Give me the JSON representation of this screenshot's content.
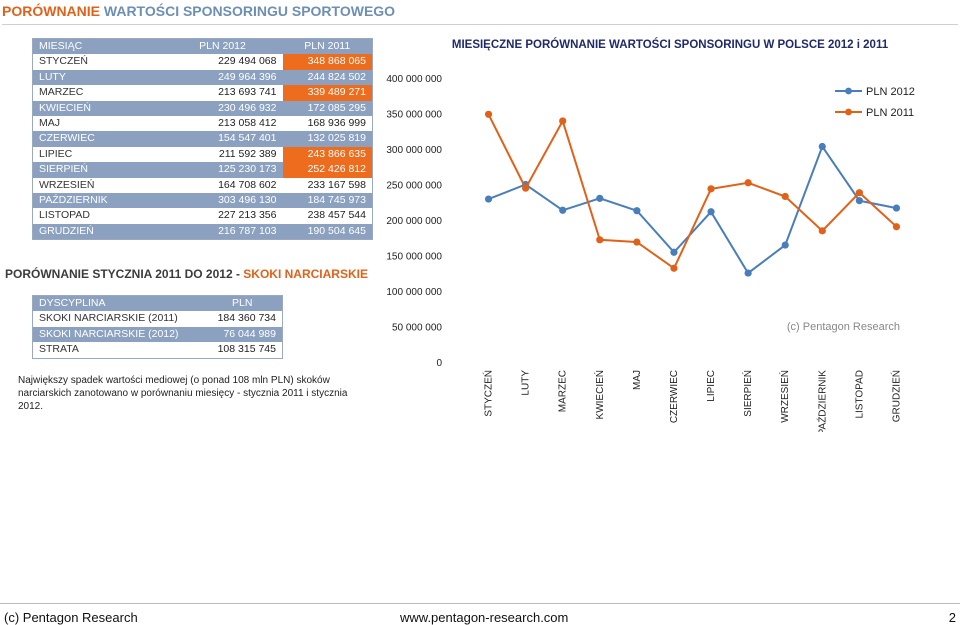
{
  "page": {
    "title_prefix": "PORÓWNANIE",
    "title_rest": " WARTOŚCI SPONSORINGU SPORTOWEGO"
  },
  "monthly_table": {
    "headers": [
      "MIESIĄC",
      "PLN 2012",
      "PLN 2011"
    ],
    "rows": [
      {
        "month": "STYCZEŃ",
        "v2012": "229 494 068",
        "v2011": "348 868 065",
        "hl": true
      },
      {
        "month": "LUTY",
        "v2012": "249 964 396",
        "v2011": "244 824 502",
        "hl": false
      },
      {
        "month": "MARZEC",
        "v2012": "213 693 741",
        "v2011": "339 489 271",
        "hl": true
      },
      {
        "month": "KWIECIEŃ",
        "v2012": "230 496 932",
        "v2011": "172 085 295",
        "hl": false
      },
      {
        "month": "MAJ",
        "v2012": "213 058 412",
        "v2011": "168 936 999",
        "hl": false
      },
      {
        "month": "CZERWIEC",
        "v2012": "154 547 401",
        "v2011": "132 025 819",
        "hl": false
      },
      {
        "month": "LIPIEC",
        "v2012": "211 592 389",
        "v2011": "243 866 635",
        "hl": true
      },
      {
        "month": "SIERPIEŃ",
        "v2012": "125 230 173",
        "v2011": "252 426 812",
        "hl": true
      },
      {
        "month": "WRZESIEŃ",
        "v2012": "164 708 602",
        "v2011": "233 167 598",
        "hl": false
      },
      {
        "month": "PAŹDZIERNIK",
        "v2012": "303 496 130",
        "v2011": "184 745 973",
        "hl": false
      },
      {
        "month": "LISTOPAD",
        "v2012": "227 213 356",
        "v2011": "238 457 544",
        "hl": false
      },
      {
        "month": "GRUDZIEŃ",
        "v2012": "216 787 103",
        "v2011": "190 504 645",
        "hl": false
      }
    ]
  },
  "ski": {
    "title_prefix": "PORÓWNANIE STYCZNIA 2011 DO 2012 - ",
    "title_accent": "SKOKI NARCIARSKIE",
    "headers": [
      "DYSCYPLINA",
      "PLN"
    ],
    "rows": [
      {
        "label": "SKOKI NARCIARSKIE (2011)",
        "value": "184 360 734"
      },
      {
        "label": "SKOKI NARCIARSKIE (2012)",
        "value": "76 044 989"
      },
      {
        "label": "STRATA",
        "value": "108 315 745"
      }
    ],
    "note": "Największy spadek wartości mediowej (o ponad 108 mln PLN) skoków narciarskich zanotowano w porównaniu miesięcy - stycznia 2011 i stycznia 2012."
  },
  "chart_data": {
    "type": "line",
    "title": "MIESIĘCZNE PORÓWNANIE WARTOŚCI SPONSORINGU W POLSCE 2012 i 2011",
    "categories": [
      "STYCZEŃ",
      "LUTY",
      "MARZEC",
      "KWIECIEŃ",
      "MAJ",
      "CZERWIEC",
      "LIPIEC",
      "SIERPIEŃ",
      "WRZESIEŃ",
      "PAŹDZIERNIK",
      "LISTOPAD",
      "GRUDZIEŃ"
    ],
    "series": [
      {
        "name": "PLN 2012",
        "color": "#4a7ebb",
        "values": [
          229494068,
          249964396,
          213693741,
          230496932,
          213058412,
          154547401,
          211592389,
          125230173,
          164708602,
          303496130,
          227213356,
          216787103
        ]
      },
      {
        "name": "PLN 2011",
        "color": "#e0621a",
        "values": [
          348868065,
          244824502,
          339489271,
          172085295,
          168936999,
          132025819,
          243866635,
          252426812,
          233167598,
          184745973,
          238457544,
          190504645
        ]
      }
    ],
    "ylim": [
      0,
      400000000
    ],
    "yticks": [
      0,
      50000000,
      100000000,
      150000000,
      200000000,
      250000000,
      300000000,
      350000000,
      400000000
    ],
    "ytick_labels": [
      "0",
      "50 000 000",
      "100 000 000",
      "150 000 000",
      "200 000 000",
      "250 000 000",
      "300 000 000",
      "350 000 000",
      "400 000 000"
    ],
    "legend_position": "top-right",
    "watermark": "(c) Pentagon Research"
  },
  "footer": {
    "left": "(c) Pentagon Research",
    "center": "www.pentagon-research.com",
    "page": "2"
  }
}
